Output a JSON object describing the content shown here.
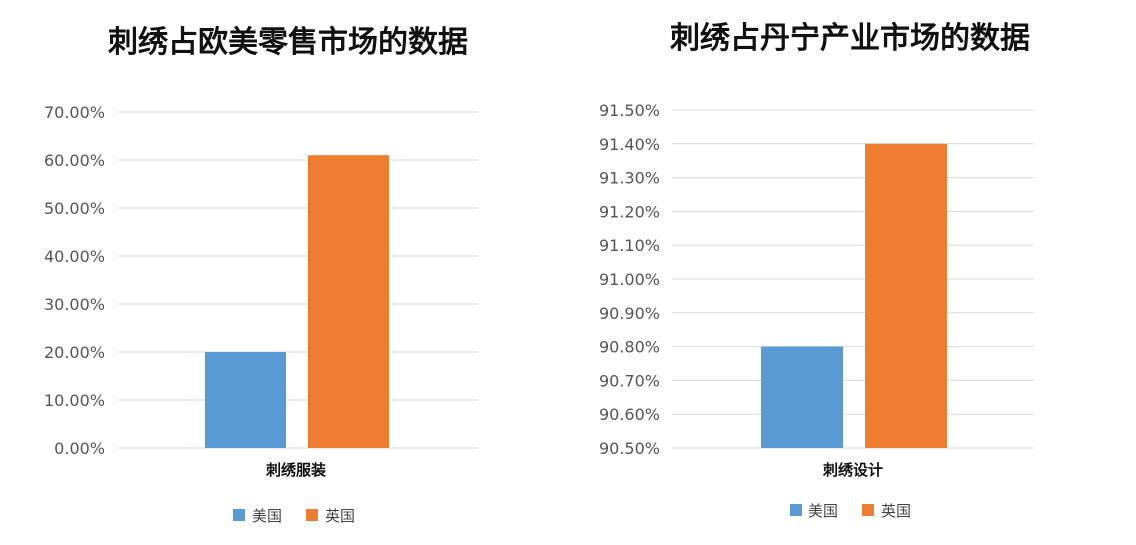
{
  "colors": {
    "us": "#5b9bd5",
    "uk": "#ed7d31",
    "grid": "#d9d9d9"
  },
  "chart_data": [
    {
      "type": "bar",
      "title": "刺绣占欧美零售市场的数据",
      "categories": [
        "刺绣服装"
      ],
      "series": [
        {
          "name": "美国",
          "values": [
            0.2
          ]
        },
        {
          "name": "英国",
          "values": [
            0.61
          ]
        }
      ],
      "ylim": [
        0,
        0.7
      ],
      "ticks": [
        "0.00%",
        "10.00%",
        "20.00%",
        "30.00%",
        "40.00%",
        "50.00%",
        "60.00%",
        "70.00%"
      ],
      "grid": true,
      "legend": "bottom"
    },
    {
      "type": "bar",
      "title": "刺绣占丹宁产业市场的数据",
      "categories": [
        "刺绣设计"
      ],
      "series": [
        {
          "name": "美国",
          "values": [
            0.908
          ]
        },
        {
          "name": "英国",
          "values": [
            0.914
          ]
        }
      ],
      "ylim": [
        0.905,
        0.915
      ],
      "ticks": [
        "90.50%",
        "90.60%",
        "90.70%",
        "90.80%",
        "90.90%",
        "91.00%",
        "91.10%",
        "91.20%",
        "91.30%",
        "91.40%",
        "91.50%"
      ],
      "grid": true,
      "legend": "bottom"
    }
  ]
}
